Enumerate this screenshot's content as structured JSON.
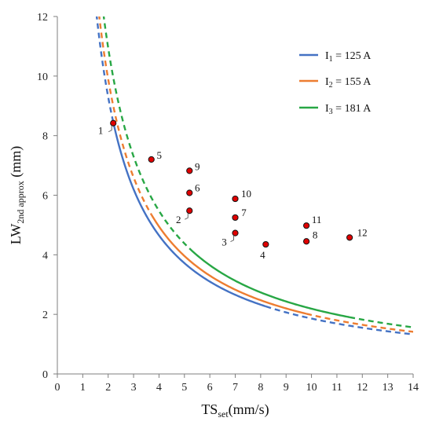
{
  "chart_data": {
    "type": "line",
    "title": "",
    "xlabel": {
      "main": "TS",
      "sub": "set",
      "unit": "(mm/s)"
    },
    "ylabel": {
      "main": "LW",
      "sub": "2nd approx",
      "unit": " (mm)"
    },
    "xlim": [
      0,
      14
    ],
    "ylim": [
      0,
      12
    ],
    "xticks": [
      "0",
      "1",
      "2",
      "3",
      "4",
      "5",
      "6",
      "7",
      "8",
      "9",
      "10",
      "11",
      "12",
      "13",
      "14"
    ],
    "yticks": [
      "0",
      "2",
      "4",
      "6",
      "8",
      "10",
      "12"
    ],
    "grid": false,
    "legend_position": "top-right",
    "series": [
      {
        "name_main": "I",
        "name_sub": "1",
        "name_rest": " = 125 A",
        "color": "#4472C4",
        "k": 18.6,
        "solid_range": [
          2.2,
          8.2
        ],
        "points": [
          {
            "label": "1",
            "x": 2.2,
            "y": 8.42
          },
          {
            "label": "2",
            "x": 5.2,
            "y": 5.48
          },
          {
            "label": "3",
            "x": 7.0,
            "y": 4.73
          },
          {
            "label": "4",
            "x": 8.2,
            "y": 4.35
          }
        ]
      },
      {
        "name_main": "I",
        "name_sub": "2",
        "name_rest": " = 155 A",
        "color": "#ED7D31",
        "k": 19.8,
        "solid_range": [
          3.7,
          9.8
        ],
        "points": [
          {
            "label": "5",
            "x": 3.7,
            "y": 7.2
          },
          {
            "label": "6",
            "x": 5.2,
            "y": 6.08
          },
          {
            "label": "7",
            "x": 7.0,
            "y": 5.25
          },
          {
            "label": "8",
            "x": 9.8,
            "y": 4.45
          }
        ]
      },
      {
        "name_main": "I",
        "name_sub": "3",
        "name_rest": " = 181 A",
        "color": "#28A745",
        "k": 21.9,
        "solid_range": [
          5.2,
          11.5
        ],
        "points": [
          {
            "label": "9",
            "x": 5.2,
            "y": 6.82
          },
          {
            "label": "10",
            "x": 7.0,
            "y": 5.88
          },
          {
            "label": "11",
            "x": 9.8,
            "y": 4.98
          },
          {
            "label": "12",
            "x": 11.5,
            "y": 4.58
          }
        ]
      }
    ]
  }
}
